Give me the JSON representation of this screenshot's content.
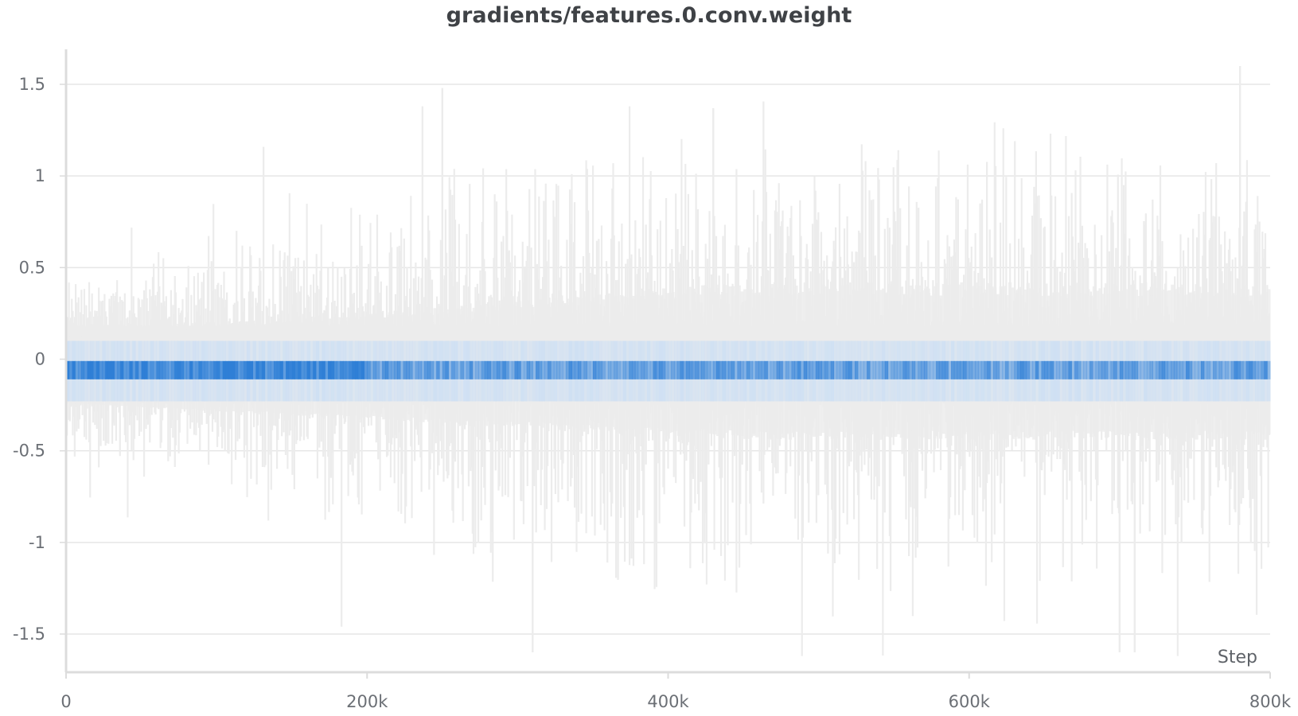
{
  "chart_data": {
    "type": "heatmap",
    "title": "gradients/features.0.conv.weight",
    "xlabel": "Step",
    "ylabel": "",
    "xlim": [
      0,
      800000
    ],
    "ylim": [
      -1.7,
      1.7
    ],
    "x_ticks": [
      {
        "value": 0,
        "label": "0"
      },
      {
        "value": 200000,
        "label": "200k"
      },
      {
        "value": 400000,
        "label": "400k"
      },
      {
        "value": 600000,
        "label": "600k"
      },
      {
        "value": 800000,
        "label": "800k"
      }
    ],
    "y_ticks": [
      {
        "value": 1.5,
        "label": "1.5"
      },
      {
        "value": 1,
        "label": "1"
      },
      {
        "value": 0.5,
        "label": "0.5"
      },
      {
        "value": 0,
        "label": "0"
      },
      {
        "value": -0.5,
        "label": "-0.5"
      },
      {
        "value": -1,
        "label": "-1"
      },
      {
        "value": -1.5,
        "label": "-1.5"
      }
    ],
    "grid": true,
    "colors": {
      "dense": "#2f7fd6",
      "medium": "#7fb0e6",
      "light": "#dfe8f2",
      "sparse": "#ececec",
      "grid": "#e6e6e6",
      "axis": "#dcdcdc"
    },
    "bands": [
      {
        "name": "core",
        "lo": -0.11,
        "hi": -0.01,
        "color": "#2f7fd6",
        "density": "high"
      },
      {
        "name": "inner",
        "lo": -0.23,
        "hi": 0.1,
        "color": "#cfe0f3",
        "density": "medium"
      },
      {
        "name": "outer",
        "lo": -0.44,
        "hi": 0.42,
        "color": "#ececec",
        "density": "low"
      }
    ],
    "spike_extremes": {
      "max_high": 1.6,
      "min_low": -1.62,
      "notable_high": [
        {
          "x": 250000,
          "y": 1.48
        },
        {
          "x": 430000,
          "y": 1.37
        },
        {
          "x": 780000,
          "y": 1.6
        }
      ],
      "notable_low": [
        {
          "x": 310000,
          "y": -1.6
        },
        {
          "x": 700000,
          "y": -1.6
        },
        {
          "x": 710000,
          "y": -1.6
        }
      ]
    }
  }
}
